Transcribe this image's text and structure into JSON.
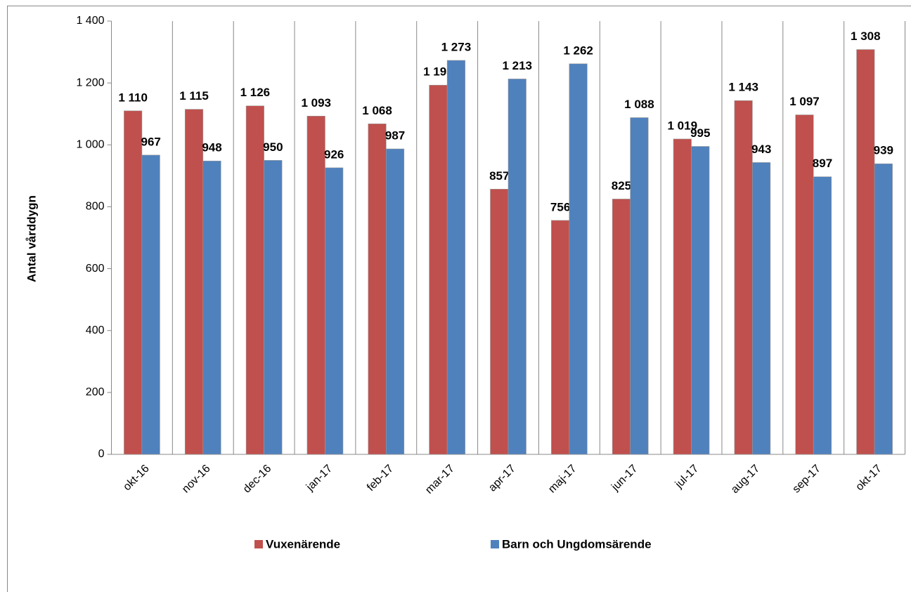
{
  "chart_data": {
    "type": "bar",
    "y_label": "Antal vårddygn",
    "categories": [
      "okt-16",
      "nov-16",
      "dec-16",
      "jan-17",
      "feb-17",
      "mar-17",
      "apr-17",
      "maj-17",
      "jun-17",
      "jul-17",
      "aug-17",
      "sep-17",
      "okt-17"
    ],
    "series": [
      {
        "name": "Vuxenärende",
        "color": "#c0504d",
        "values": [
          1110,
          1115,
          1126,
          1093,
          1068,
          1193,
          857,
          756,
          825,
          1019,
          1143,
          1097,
          1308
        ],
        "value_labels": [
          "1 110",
          "1 115",
          "1 126",
          "1 093",
          "1 068",
          "1 193",
          "857",
          "756",
          "825",
          "1 019",
          "1 143",
          "1 097",
          "1 308"
        ]
      },
      {
        "name": "Barn och Ungdomsärende",
        "color": "#4f81bd",
        "values": [
          967,
          948,
          950,
          926,
          987,
          1273,
          1213,
          1262,
          1088,
          995,
          943,
          897,
          939
        ],
        "value_labels": [
          "967",
          "948",
          "950",
          "926",
          "987",
          "1 273",
          "1 213",
          "1 262",
          "1 088",
          "995",
          "943",
          "897",
          "939"
        ]
      }
    ],
    "ylim": [
      0,
      1400
    ],
    "yticks": [
      0,
      200,
      400,
      600,
      800,
      {
        "value": 1000,
        "label": "1 000"
      },
      {
        "value": 1200,
        "label": "1 200"
      },
      {
        "value": 1400,
        "label": "1 400"
      }
    ],
    "grid": true,
    "legend": "bottom"
  }
}
